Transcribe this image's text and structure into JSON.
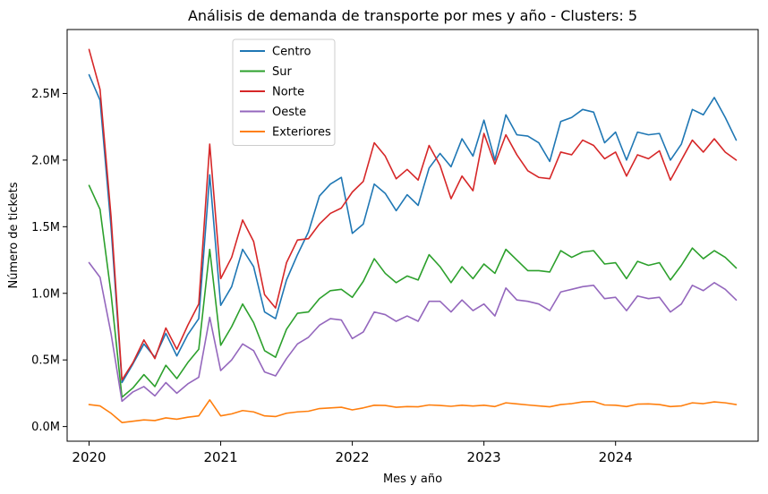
{
  "chart_data": {
    "type": "line",
    "title": "Análisis de demanda de transporte por mes y año - Clusters: 5",
    "xlabel": "Mes y año",
    "ylabel": "Número de tickets",
    "x_start": "2020-01",
    "x_ticks": [
      "2020",
      "2021",
      "2022",
      "2023",
      "2024"
    ],
    "y_ticks": [
      {
        "value": 0,
        "label": "0.0M"
      },
      {
        "value": 500000,
        "label": "0.5M"
      },
      {
        "value": 1000000,
        "label": "1.0M"
      },
      {
        "value": 1500000,
        "label": "1.5M"
      },
      {
        "value": 2000000,
        "label": "2.0M"
      },
      {
        "value": 2500000,
        "label": "2.5M"
      }
    ],
    "xlim": [
      "2019-11",
      "2025-02"
    ],
    "ylim": [
      -110000,
      2980000
    ],
    "grid": false,
    "legend_position": "upper-left",
    "series": [
      {
        "name": "Centro",
        "color": "#1f77b4",
        "values": [
          2640000,
          2450000,
          1500000,
          330000,
          470000,
          620000,
          520000,
          700000,
          530000,
          690000,
          810000,
          1890000,
          910000,
          1050000,
          1330000,
          1200000,
          860000,
          810000,
          1100000,
          1290000,
          1460000,
          1730000,
          1820000,
          1870000,
          1450000,
          1520000,
          1820000,
          1750000,
          1620000,
          1740000,
          1660000,
          1940000,
          2050000,
          1950000,
          2160000,
          2030000,
          2300000,
          2000000,
          2340000,
          2190000,
          2180000,
          2130000,
          1990000,
          2290000,
          2320000,
          2380000,
          2360000,
          2130000,
          2210000,
          2000000,
          2210000,
          2190000,
          2200000,
          2000000,
          2120000,
          2380000,
          2340000,
          2470000,
          2320000,
          2150000
        ]
      },
      {
        "name": "Sur",
        "color": "#2ca02c",
        "values": [
          1810000,
          1630000,
          1000000,
          220000,
          290000,
          390000,
          300000,
          460000,
          360000,
          480000,
          580000,
          1330000,
          610000,
          750000,
          920000,
          780000,
          570000,
          520000,
          730000,
          850000,
          860000,
          960000,
          1020000,
          1030000,
          970000,
          1090000,
          1260000,
          1150000,
          1080000,
          1130000,
          1100000,
          1290000,
          1200000,
          1080000,
          1200000,
          1110000,
          1220000,
          1150000,
          1330000,
          1250000,
          1170000,
          1170000,
          1160000,
          1320000,
          1270000,
          1310000,
          1320000,
          1220000,
          1230000,
          1110000,
          1240000,
          1210000,
          1230000,
          1100000,
          1210000,
          1340000,
          1260000,
          1320000,
          1270000,
          1190000
        ]
      },
      {
        "name": "Norte",
        "color": "#d62728",
        "values": [
          2830000,
          2530000,
          1580000,
          350000,
          480000,
          650000,
          510000,
          740000,
          580000,
          760000,
          920000,
          2120000,
          1110000,
          1270000,
          1550000,
          1390000,
          990000,
          890000,
          1230000,
          1400000,
          1410000,
          1520000,
          1600000,
          1640000,
          1760000,
          1840000,
          2130000,
          2030000,
          1860000,
          1930000,
          1850000,
          2110000,
          1960000,
          1710000,
          1880000,
          1770000,
          2200000,
          1970000,
          2190000,
          2040000,
          1920000,
          1870000,
          1860000,
          2060000,
          2040000,
          2150000,
          2110000,
          2010000,
          2060000,
          1880000,
          2040000,
          2010000,
          2070000,
          1850000,
          2000000,
          2150000,
          2060000,
          2160000,
          2060000,
          2000000
        ]
      },
      {
        "name": "Oeste",
        "color": "#9467bd",
        "values": [
          1230000,
          1120000,
          700000,
          190000,
          260000,
          300000,
          230000,
          330000,
          250000,
          320000,
          370000,
          820000,
          420000,
          500000,
          620000,
          570000,
          410000,
          380000,
          510000,
          620000,
          670000,
          760000,
          810000,
          800000,
          660000,
          710000,
          860000,
          840000,
          790000,
          830000,
          790000,
          940000,
          940000,
          860000,
          950000,
          870000,
          920000,
          830000,
          1040000,
          950000,
          940000,
          920000,
          870000,
          1010000,
          1030000,
          1050000,
          1060000,
          960000,
          970000,
          870000,
          980000,
          960000,
          970000,
          860000,
          920000,
          1060000,
          1020000,
          1080000,
          1030000,
          950000
        ]
      },
      {
        "name": "Exteriores",
        "color": "#ff7f0e",
        "values": [
          165000,
          155000,
          100000,
          30000,
          40000,
          50000,
          45000,
          65000,
          55000,
          70000,
          80000,
          200000,
          80000,
          95000,
          120000,
          110000,
          80000,
          75000,
          100000,
          110000,
          115000,
          135000,
          140000,
          145000,
          125000,
          140000,
          160000,
          158000,
          145000,
          150000,
          148000,
          162000,
          158000,
          152000,
          160000,
          154000,
          160000,
          150000,
          178000,
          170000,
          162000,
          155000,
          148000,
          165000,
          172000,
          185000,
          188000,
          162000,
          160000,
          150000,
          168000,
          170000,
          165000,
          150000,
          155000,
          178000,
          172000,
          185000,
          178000,
          165000
        ]
      }
    ]
  }
}
